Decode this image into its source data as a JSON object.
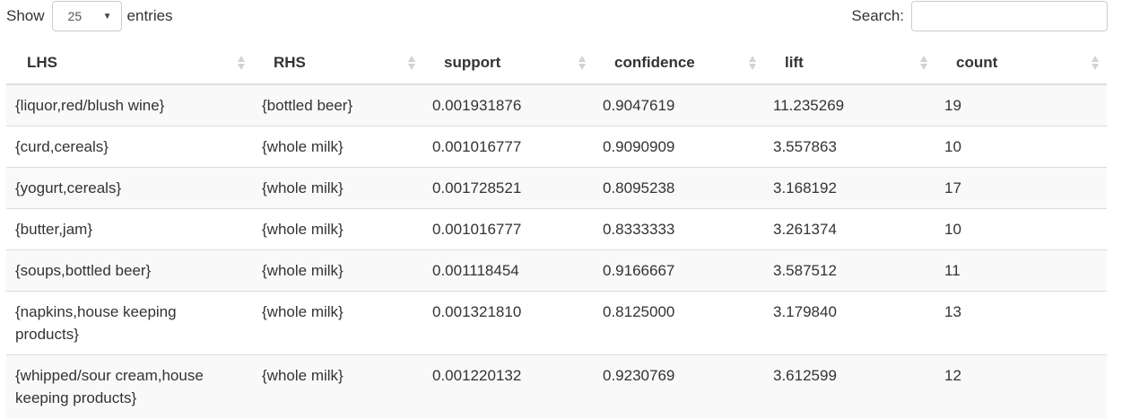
{
  "controls": {
    "show_label": "Show",
    "length_value": "25",
    "entries_label": "entries",
    "search_label": "Search:",
    "search_value": ""
  },
  "table": {
    "columns": [
      "LHS",
      "RHS",
      "support",
      "confidence",
      "lift",
      "count"
    ],
    "rows": [
      [
        "{liquor,red/blush wine}",
        "{bottled beer}",
        "0.001931876",
        "0.9047619",
        "11.235269",
        "19"
      ],
      [
        "{curd,cereals}",
        "{whole milk}",
        "0.001016777",
        "0.9090909",
        "3.557863",
        "10"
      ],
      [
        "{yogurt,cereals}",
        "{whole milk}",
        "0.001728521",
        "0.8095238",
        "3.168192",
        "17"
      ],
      [
        "{butter,jam}",
        "{whole milk}",
        "0.001016777",
        "0.8333333",
        "3.261374",
        "10"
      ],
      [
        "{soups,bottled beer}",
        "{whole milk}",
        "0.001118454",
        "0.9166667",
        "3.587512",
        "11"
      ],
      [
        "{napkins,house keeping products}",
        "{whole milk}",
        "0.001321810",
        "0.8125000",
        "3.179840",
        "13"
      ],
      [
        "{whipped/sour cream,house keeping products}",
        "{whole milk}",
        "0.001220132",
        "0.9230769",
        "3.612599",
        "12"
      ]
    ]
  }
}
